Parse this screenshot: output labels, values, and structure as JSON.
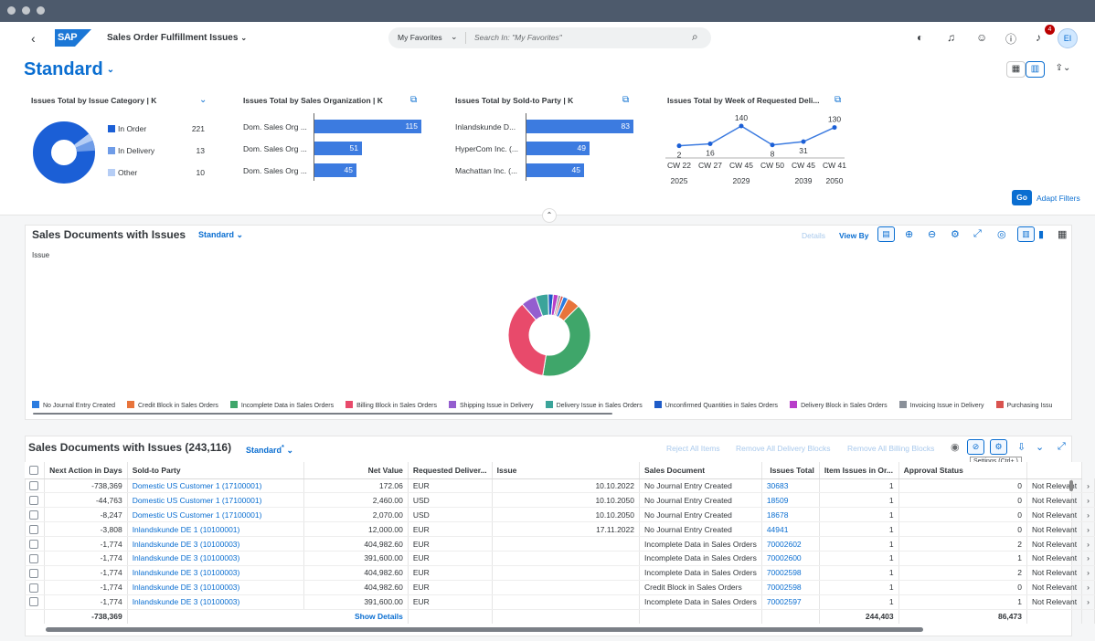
{
  "shell": {
    "back": "‹",
    "logo": "SAP",
    "app_title": "Sales Order Fulfillment Issues",
    "search_scope": "My Favorites",
    "search_placeholder": "Search In: \"My Favorites\"",
    "notification_count": "4",
    "avatar": "EI"
  },
  "header": {
    "variant": "Standard",
    "go": "Go",
    "adapt_filters": "Adapt Filters"
  },
  "cards": {
    "category": {
      "title": "Issues Total by Issue Category",
      "unit": "| K",
      "items": [
        {
          "label": "In Order",
          "value": "221",
          "color": "#1b5fd6"
        },
        {
          "label": "In Delivery",
          "value": "13",
          "color": "#6f9ce8"
        },
        {
          "label": "Other",
          "value": "10",
          "color": "#b5cdf5"
        }
      ]
    },
    "salesorg": {
      "title": "Issues Total by Sales Organization",
      "unit": "| K",
      "items": [
        {
          "label": "Dom. Sales Org ...",
          "value": 115
        },
        {
          "label": "Dom. Sales Org ...",
          "value": 51
        },
        {
          "label": "Dom. Sales Org ...",
          "value": 45
        }
      ]
    },
    "soldto": {
      "title": "Issues Total by Sold-to Party",
      "unit": "| K",
      "items": [
        {
          "label": "Inlandskunde D...",
          "value": 83
        },
        {
          "label": "HyperCom Inc. (...",
          "value": 49
        },
        {
          "label": "Machattan Inc. (...",
          "value": 45
        }
      ]
    },
    "week": {
      "title": "Issues Total by Week of Requested Deli...",
      "points": [
        {
          "week": "CW 22",
          "year": "2025",
          "value": 2
        },
        {
          "week": "CW 27",
          "year": "",
          "value": 16
        },
        {
          "week": "CW 45",
          "year": "2029",
          "value": 140
        },
        {
          "week": "CW 50",
          "year": "",
          "value": 8
        },
        {
          "week": "CW 45",
          "year": "2039",
          "value": 31
        },
        {
          "week": "CW 41",
          "year": "2050",
          "value": 130
        }
      ]
    }
  },
  "chart_panel": {
    "title": "Sales Documents with Issues",
    "variant": "Standard",
    "details": "Details",
    "view_by": "View By",
    "dimension_label": "Issue"
  },
  "chart_data": {
    "type": "pie",
    "series": [
      {
        "name": "No Journal Entry Created",
        "value": 2,
        "color": "#2b7ce0"
      },
      {
        "name": "Credit Block in Sales Orders",
        "value": 5,
        "color": "#e8743b"
      },
      {
        "name": "Incomplete Data in Sales Orders",
        "value": 40,
        "color": "#3fa66a"
      },
      {
        "name": "Billing Block in Sales Orders",
        "value": 36,
        "color": "#e84a6b"
      },
      {
        "name": "Shipping Issue in Delivery",
        "value": 6,
        "color": "#945ecf"
      },
      {
        "name": "Delivery Issue in Sales Orders",
        "value": 5,
        "color": "#3ba49a"
      },
      {
        "name": "Unconfirmed Quantities in Sales Orders",
        "value": 2,
        "color": "#1f5cc8"
      },
      {
        "name": "Delivery Block in Sales Orders",
        "value": 2,
        "color": "#b83ec9"
      },
      {
        "name": "Invoicing Issue in Delivery",
        "value": 1,
        "color": "#8a9099"
      },
      {
        "name": "Purchasing Issu",
        "value": 1,
        "color": "#d9534f"
      }
    ]
  },
  "table_panel": {
    "title": "Sales Documents with Issues (243,116)",
    "variant": "Standard",
    "variant_mark": "*",
    "reject_all": "Reject All Items",
    "remove_delivery": "Remove All Delivery Blocks",
    "remove_billing": "Remove All Billing Blocks",
    "tooltip": "Settings (Ctrl+,)",
    "columns": [
      "Next Action in Days",
      "Sold-to Party",
      "Net Value",
      "Requested Deliver...",
      "Issue",
      "Sales Document",
      "Issues Total",
      "Item Issues in Or...",
      "Approval Status"
    ],
    "rows": [
      {
        "days": "-738,369",
        "party": "Domestic US Customer 1 (17100001)",
        "value": "172.06",
        "cur": "EUR",
        "date": "10.10.2022",
        "issue": "No Journal Entry Created",
        "doc": "30683",
        "total": "1",
        "items": "0",
        "status": "Not Relevant"
      },
      {
        "days": "-44,763",
        "party": "Domestic US Customer 1 (17100001)",
        "value": "2,460.00",
        "cur": "USD",
        "date": "10.10.2050",
        "issue": "No Journal Entry Created",
        "doc": "18509",
        "total": "1",
        "items": "0",
        "status": "Not Relevant"
      },
      {
        "days": "-8,247",
        "party": "Domestic US Customer 1 (17100001)",
        "value": "2,070.00",
        "cur": "USD",
        "date": "10.10.2050",
        "issue": "No Journal Entry Created",
        "doc": "18678",
        "total": "1",
        "items": "0",
        "status": "Not Relevant"
      },
      {
        "days": "-3,808",
        "party": "Inlandskunde DE 1 (10100001)",
        "value": "12,000.00",
        "cur": "EUR",
        "date": "17.11.2022",
        "issue": "No Journal Entry Created",
        "doc": "44941",
        "total": "1",
        "items": "0",
        "status": "Not Relevant"
      },
      {
        "days": "-1,774",
        "party": "Inlandskunde DE 3 (10100003)",
        "value": "404,982.60",
        "cur": "EUR",
        "date": "",
        "issue": "Incomplete Data in Sales Orders",
        "doc": "70002602",
        "total": "1",
        "items": "2",
        "status": "Not Relevant"
      },
      {
        "days": "-1,774",
        "party": "Inlandskunde DE 3 (10100003)",
        "value": "391,600.00",
        "cur": "EUR",
        "date": "",
        "issue": "Incomplete Data in Sales Orders",
        "doc": "70002600",
        "total": "1",
        "items": "1",
        "status": "Not Relevant"
      },
      {
        "days": "-1,774",
        "party": "Inlandskunde DE 3 (10100003)",
        "value": "404,982.60",
        "cur": "EUR",
        "date": "",
        "issue": "Incomplete Data in Sales Orders",
        "doc": "70002598",
        "total": "1",
        "items": "2",
        "status": "Not Relevant"
      },
      {
        "days": "-1,774",
        "party": "Inlandskunde DE 3 (10100003)",
        "value": "404,982.60",
        "cur": "EUR",
        "date": "",
        "issue": "Credit Block in Sales Orders",
        "doc": "70002598",
        "total": "1",
        "items": "0",
        "status": "Not Relevant"
      },
      {
        "days": "-1,774",
        "party": "Inlandskunde DE 3 (10100003)",
        "value": "391,600.00",
        "cur": "EUR",
        "date": "",
        "issue": "Incomplete Data in Sales Orders",
        "doc": "70002597",
        "total": "1",
        "items": "1",
        "status": "Not Relevant"
      }
    ],
    "totals": {
      "days": "-738,369",
      "show_details": "Show Details",
      "issues_total": "244,403",
      "item_issues": "86,473"
    }
  }
}
